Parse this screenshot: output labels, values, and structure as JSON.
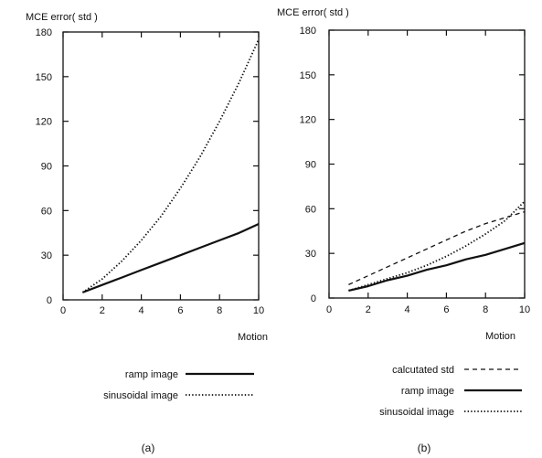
{
  "chart_data": [
    {
      "type": "line",
      "ylabel": "MCE error( std )",
      "xlabel": "Motion",
      "xlim": [
        0,
        10
      ],
      "ylim": [
        0,
        180
      ],
      "xticks": [
        "0",
        "2",
        "4",
        "6",
        "8",
        "10"
      ],
      "yticks": [
        "0",
        "30",
        "60",
        "90",
        "120",
        "150",
        "180"
      ],
      "legend_position": "bottom",
      "panel_label": "(a)",
      "series": [
        {
          "name": "ramp image",
          "style": "solid",
          "x": [
            1,
            2,
            3,
            4,
            5,
            6,
            7,
            8,
            9,
            10
          ],
          "y": [
            5,
            10,
            15,
            20,
            25,
            30,
            35,
            40,
            45,
            51
          ]
        },
        {
          "name": "sinusoidal image",
          "style": "dotted",
          "x": [
            1,
            2,
            3,
            4,
            5,
            6,
            7,
            8,
            9,
            10
          ],
          "y": [
            5,
            14,
            26,
            40,
            56,
            75,
            96,
            120,
            146,
            175
          ]
        }
      ]
    },
    {
      "type": "line",
      "ylabel": "MCE error( std )",
      "xlabel": "Motion",
      "xlim": [
        0,
        10
      ],
      "ylim": [
        0,
        180
      ],
      "xticks": [
        "0",
        "2",
        "4",
        "6",
        "8",
        "10"
      ],
      "yticks": [
        "0",
        "30",
        "60",
        "90",
        "120",
        "150",
        "180"
      ],
      "legend_position": "bottom",
      "panel_label": "(b)",
      "series": [
        {
          "name": "calcutated std",
          "style": "dashed",
          "x": [
            1,
            2,
            3,
            4,
            5,
            6,
            7,
            8,
            9,
            10
          ],
          "y": [
            9,
            15,
            21,
            27,
            33,
            39,
            45,
            50,
            54,
            58
          ]
        },
        {
          "name": "ramp image",
          "style": "solid",
          "x": [
            1,
            2,
            3,
            4,
            5,
            6,
            7,
            8,
            9,
            10
          ],
          "y": [
            5,
            8,
            12,
            15,
            19,
            22,
            26,
            29,
            33,
            37
          ]
        },
        {
          "name": "sinusoidal image",
          "style": "dotted",
          "x": [
            1,
            2,
            3,
            4,
            5,
            6,
            7,
            8,
            9,
            10
          ],
          "y": [
            5,
            9,
            13,
            17,
            22,
            28,
            35,
            43,
            52,
            65
          ]
        }
      ]
    }
  ]
}
